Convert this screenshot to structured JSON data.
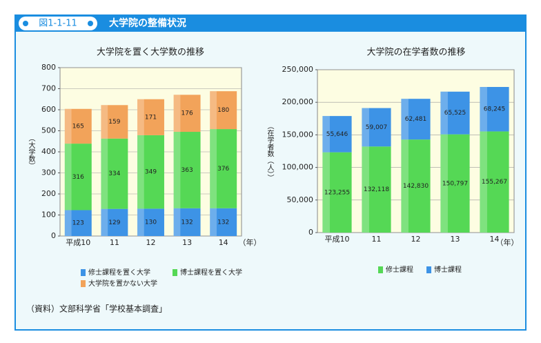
{
  "header": {
    "label": "図1-1-11",
    "title": "大学院の整備状況"
  },
  "source": "（資料）文部科学省「学校基本調査」",
  "chart_data": [
    {
      "type": "stacked-bar",
      "title": "大学院を置く大学数の推移",
      "ylabel": "（大学数）",
      "xlabel": "（年）",
      "categories": [
        "平成10",
        "11",
        "12",
        "13",
        "14"
      ],
      "ylim": [
        0,
        800
      ],
      "yticks": [
        0,
        100,
        200,
        300,
        400,
        500,
        600,
        700,
        800
      ],
      "grid": true,
      "series": [
        {
          "name": "修士課程を置く大学",
          "color": "#3d93e6",
          "values": [
            123,
            129,
            130,
            132,
            132
          ]
        },
        {
          "name": "博士課程を置く大学",
          "color": "#55d855",
          "values": [
            316,
            334,
            349,
            363,
            376
          ]
        },
        {
          "name": "大学院を置かない大学",
          "color": "#f2a35a",
          "values": [
            165,
            159,
            171,
            176,
            180
          ]
        }
      ]
    },
    {
      "type": "stacked-bar",
      "title": "大学院の在学者数の推移",
      "ylabel": "（在学者数（人））",
      "xlabel": "（年）",
      "categories": [
        "平成10",
        "11",
        "12",
        "13",
        "14"
      ],
      "ylim": [
        0,
        250000
      ],
      "yticks": [
        0,
        {
          "value": 50000,
          "label": "50,000"
        },
        {
          "value": 100000,
          "label": "100,000"
        },
        {
          "value": 150000,
          "label": "150,000"
        },
        {
          "value": 200000,
          "label": "200,000"
        },
        {
          "value": 250000,
          "label": "250,000"
        }
      ],
      "grid": true,
      "series": [
        {
          "name": "修士課程",
          "color": "#55d855",
          "values": [
            123255,
            132118,
            142830,
            150797,
            155267
          ],
          "value_labels": [
            "123,255",
            "132,118",
            "142,830",
            "150,797",
            "155,267"
          ]
        },
        {
          "name": "博士課程",
          "color": "#3d93e6",
          "values": [
            55646,
            59007,
            62481,
            65525,
            68245
          ],
          "value_labels": [
            "55,646",
            "59,007",
            "62,481",
            "65,525",
            "68,245"
          ]
        }
      ]
    }
  ]
}
